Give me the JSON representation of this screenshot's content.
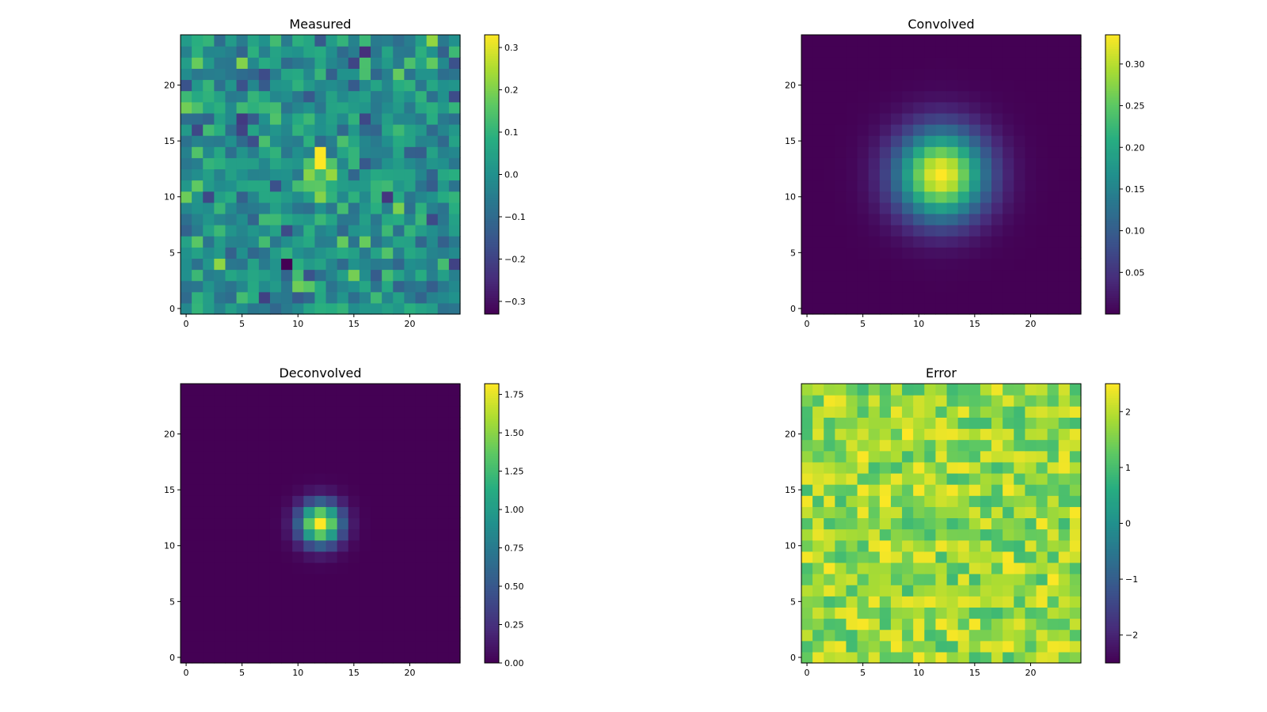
{
  "chart_data": [
    {
      "type": "heatmap",
      "title": "Measured",
      "grid_size": 25,
      "field": "noise",
      "noise_seed": 11,
      "peak_center": [
        12,
        12
      ],
      "peak_value": 0.33,
      "color_range": [
        -0.33,
        0.33
      ],
      "colormap": "viridis",
      "x_ticks": [
        0,
        5,
        10,
        15,
        20
      ],
      "y_ticks": [
        0,
        5,
        10,
        15,
        20
      ],
      "colorbar_ticks": [
        {
          "value": -0.3,
          "label": "−0.3"
        },
        {
          "value": -0.2,
          "label": "−0.2"
        },
        {
          "value": -0.1,
          "label": "−0.1"
        },
        {
          "value": 0.0,
          "label": "0.0"
        },
        {
          "value": 0.1,
          "label": "0.1"
        },
        {
          "value": 0.2,
          "label": "0.2"
        },
        {
          "value": 0.3,
          "label": "0.3"
        }
      ]
    },
    {
      "type": "heatmap",
      "title": "Convolved",
      "grid_size": 25,
      "field": "gaussian",
      "center": [
        12,
        12
      ],
      "sigma": 2.8,
      "peak_value": 0.335,
      "color_range": [
        0.0,
        0.335
      ],
      "colormap": "viridis",
      "x_ticks": [
        0,
        5,
        10,
        15,
        20
      ],
      "y_ticks": [
        0,
        5,
        10,
        15,
        20
      ],
      "colorbar_ticks": [
        {
          "value": 0.05,
          "label": "0.05"
        },
        {
          "value": 0.1,
          "label": "0.10"
        },
        {
          "value": 0.15,
          "label": "0.15"
        },
        {
          "value": 0.2,
          "label": "0.20"
        },
        {
          "value": 0.25,
          "label": "0.25"
        },
        {
          "value": 0.3,
          "label": "0.30"
        }
      ]
    },
    {
      "type": "heatmap",
      "title": "Deconvolved",
      "grid_size": 25,
      "field": "gaussian",
      "center": [
        12,
        12
      ],
      "sigma": 1.3,
      "peak_value": 1.82,
      "color_range": [
        0.0,
        1.82
      ],
      "colormap": "viridis",
      "x_ticks": [
        0,
        5,
        10,
        15,
        20
      ],
      "y_ticks": [
        0,
        5,
        10,
        15,
        20
      ],
      "colorbar_ticks": [
        {
          "value": 0.0,
          "label": "0.00"
        },
        {
          "value": 0.25,
          "label": "0.25"
        },
        {
          "value": 0.5,
          "label": "0.50"
        },
        {
          "value": 0.75,
          "label": "0.75"
        },
        {
          "value": 1.0,
          "label": "1.00"
        },
        {
          "value": 1.25,
          "label": "1.25"
        },
        {
          "value": 1.5,
          "label": "1.50"
        },
        {
          "value": 1.75,
          "label": "1.75"
        }
      ]
    },
    {
      "type": "heatmap",
      "title": "Error",
      "grid_size": 25,
      "field": "uniform",
      "noise_seed": 29,
      "value_range": [
        0.9,
        2.5
      ],
      "color_range": [
        -2.5,
        2.5
      ],
      "colormap": "viridis",
      "x_ticks": [
        0,
        5,
        10,
        15,
        20
      ],
      "y_ticks": [
        0,
        5,
        10,
        15,
        20
      ],
      "colorbar_ticks": [
        {
          "value": -2,
          "label": "−2"
        },
        {
          "value": -1,
          "label": "−1"
        },
        {
          "value": 0,
          "label": "0"
        },
        {
          "value": 1,
          "label": "1"
        },
        {
          "value": 2,
          "label": "2"
        }
      ]
    }
  ]
}
